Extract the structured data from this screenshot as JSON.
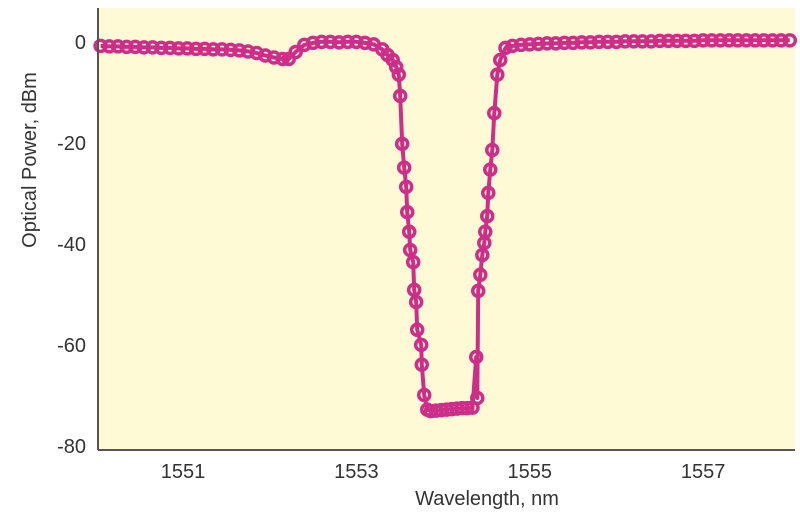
{
  "chart_data": {
    "type": "line",
    "title": "",
    "xlabel": "Wavelength, nm",
    "ylabel": "Optical Power, dBm",
    "xlim": [
      1550.02,
      1558.06
    ],
    "ylim": [
      -80.8,
      6.7
    ],
    "xticks": [
      1551,
      1553,
      1555,
      1557
    ],
    "yticks": [
      0,
      -20,
      -40,
      -60,
      -80
    ],
    "grid": false,
    "legend": "none",
    "colors": {
      "series": "#cc2e8a",
      "plot_background": "#fefad6",
      "axis": "#555555"
    },
    "series": [
      {
        "marker": "open-circle",
        "x": [
          1550.05,
          1550.15,
          1550.25,
          1550.35,
          1550.45,
          1550.55,
          1550.65,
          1550.75,
          1550.85,
          1550.95,
          1551.05,
          1551.15,
          1551.25,
          1551.35,
          1551.45,
          1551.55,
          1551.65,
          1551.75,
          1551.85,
          1551.95,
          1552.05,
          1552.15,
          1552.22,
          1552.3,
          1552.4,
          1552.5,
          1552.6,
          1552.7,
          1552.8,
          1552.9,
          1553.0,
          1553.1,
          1553.2,
          1553.3,
          1553.36,
          1553.42,
          1553.46,
          1553.49,
          1553.506,
          1553.529,
          1553.552,
          1553.575,
          1553.587,
          1553.61,
          1553.621,
          1553.656,
          1553.667,
          1553.69,
          1553.702,
          1553.748,
          1553.755,
          1553.783,
          1553.818,
          1553.86,
          1553.92,
          1553.98,
          1554.04,
          1554.1,
          1554.16,
          1554.22,
          1554.28,
          1554.34,
          1554.383,
          1554.395,
          1554.406,
          1554.43,
          1554.453,
          1554.476,
          1554.487,
          1554.51,
          1554.522,
          1554.545,
          1554.568,
          1554.591,
          1554.626,
          1554.66,
          1554.72,
          1554.8,
          1554.9,
          1555.0,
          1555.1,
          1555.2,
          1555.3,
          1555.4,
          1555.5,
          1555.6,
          1555.7,
          1555.8,
          1555.9,
          1556.0,
          1556.1,
          1556.2,
          1556.3,
          1556.4,
          1556.5,
          1556.6,
          1556.7,
          1556.8,
          1556.9,
          1557.0,
          1557.1,
          1557.2,
          1557.3,
          1557.4,
          1557.5,
          1557.6,
          1557.7,
          1557.8,
          1557.9,
          1558.0
        ],
        "y": [
          -0.8,
          -0.9,
          -0.9,
          -1.0,
          -1.0,
          -1.1,
          -1.1,
          -1.2,
          -1.2,
          -1.3,
          -1.3,
          -1.4,
          -1.4,
          -1.5,
          -1.5,
          -1.6,
          -1.7,
          -1.9,
          -2.2,
          -2.7,
          -3.1,
          -3.4,
          -3.4,
          -2.0,
          -0.6,
          -0.2,
          0.0,
          0.0,
          -0.1,
          0.0,
          0.0,
          -0.2,
          -0.5,
          -1.5,
          -2.6,
          -3.6,
          -5.0,
          -6.5,
          -10.7,
          -20.2,
          -24.9,
          -28.7,
          -33.7,
          -37.6,
          -41.2,
          -43.6,
          -49.1,
          -51.5,
          -57.0,
          -60.0,
          -63.9,
          -69.9,
          -72.8,
          -73.1,
          -73.0,
          -72.9,
          -72.8,
          -72.7,
          -72.6,
          -72.5,
          -72.5,
          -72.4,
          -62.4,
          -70.5,
          -49.3,
          -46.1,
          -42.2,
          -39.8,
          -37.6,
          -34.5,
          -29.9,
          -25.3,
          -21.4,
          -14.1,
          -6.5,
          -3.6,
          -1.2,
          -0.8,
          -0.6,
          -0.5,
          -0.4,
          -0.3,
          -0.3,
          -0.2,
          -0.2,
          -0.1,
          -0.1,
          0.0,
          0.0,
          0.0,
          0.1,
          0.1,
          0.1,
          0.1,
          0.2,
          0.2,
          0.2,
          0.2,
          0.2,
          0.3,
          0.3,
          0.3,
          0.3,
          0.3,
          0.3,
          0.3,
          0.3,
          0.3,
          0.3,
          0.3
        ]
      }
    ]
  }
}
